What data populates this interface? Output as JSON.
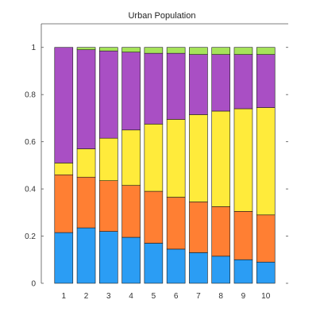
{
  "chart_data": {
    "type": "bar",
    "stacked": true,
    "title": "Urban Population",
    "xlabel": "",
    "ylabel": "",
    "categories": [
      "1",
      "2",
      "3",
      "4",
      "5",
      "6",
      "7",
      "8",
      "9",
      "10"
    ],
    "ylim": [
      0,
      1.1
    ],
    "yticks": [
      0,
      0.2,
      0.4,
      0.6,
      0.8,
      1
    ],
    "ytick_labels": [
      "0",
      "0.2",
      "0.4",
      "0.6",
      "0.8",
      "1"
    ],
    "grid": false,
    "legend": "none",
    "series": [
      {
        "color": "#2b9df4",
        "values": [
          0.215,
          0.235,
          0.22,
          0.195,
          0.17,
          0.145,
          0.13,
          0.115,
          0.1,
          0.09
        ]
      },
      {
        "color": "#ff7f33",
        "values": [
          0.245,
          0.215,
          0.215,
          0.22,
          0.22,
          0.22,
          0.215,
          0.21,
          0.205,
          0.2
        ]
      },
      {
        "color": "#ffeb3b",
        "values": [
          0.05,
          0.12,
          0.18,
          0.235,
          0.285,
          0.33,
          0.37,
          0.405,
          0.435,
          0.455
        ]
      },
      {
        "color": "#a94fc4",
        "values": [
          0.49,
          0.42,
          0.37,
          0.33,
          0.3,
          0.28,
          0.255,
          0.24,
          0.23,
          0.225
        ]
      },
      {
        "color": "#a6e35a",
        "values": [
          0.0,
          0.01,
          0.015,
          0.02,
          0.025,
          0.025,
          0.03,
          0.03,
          0.03,
          0.03
        ]
      }
    ]
  }
}
